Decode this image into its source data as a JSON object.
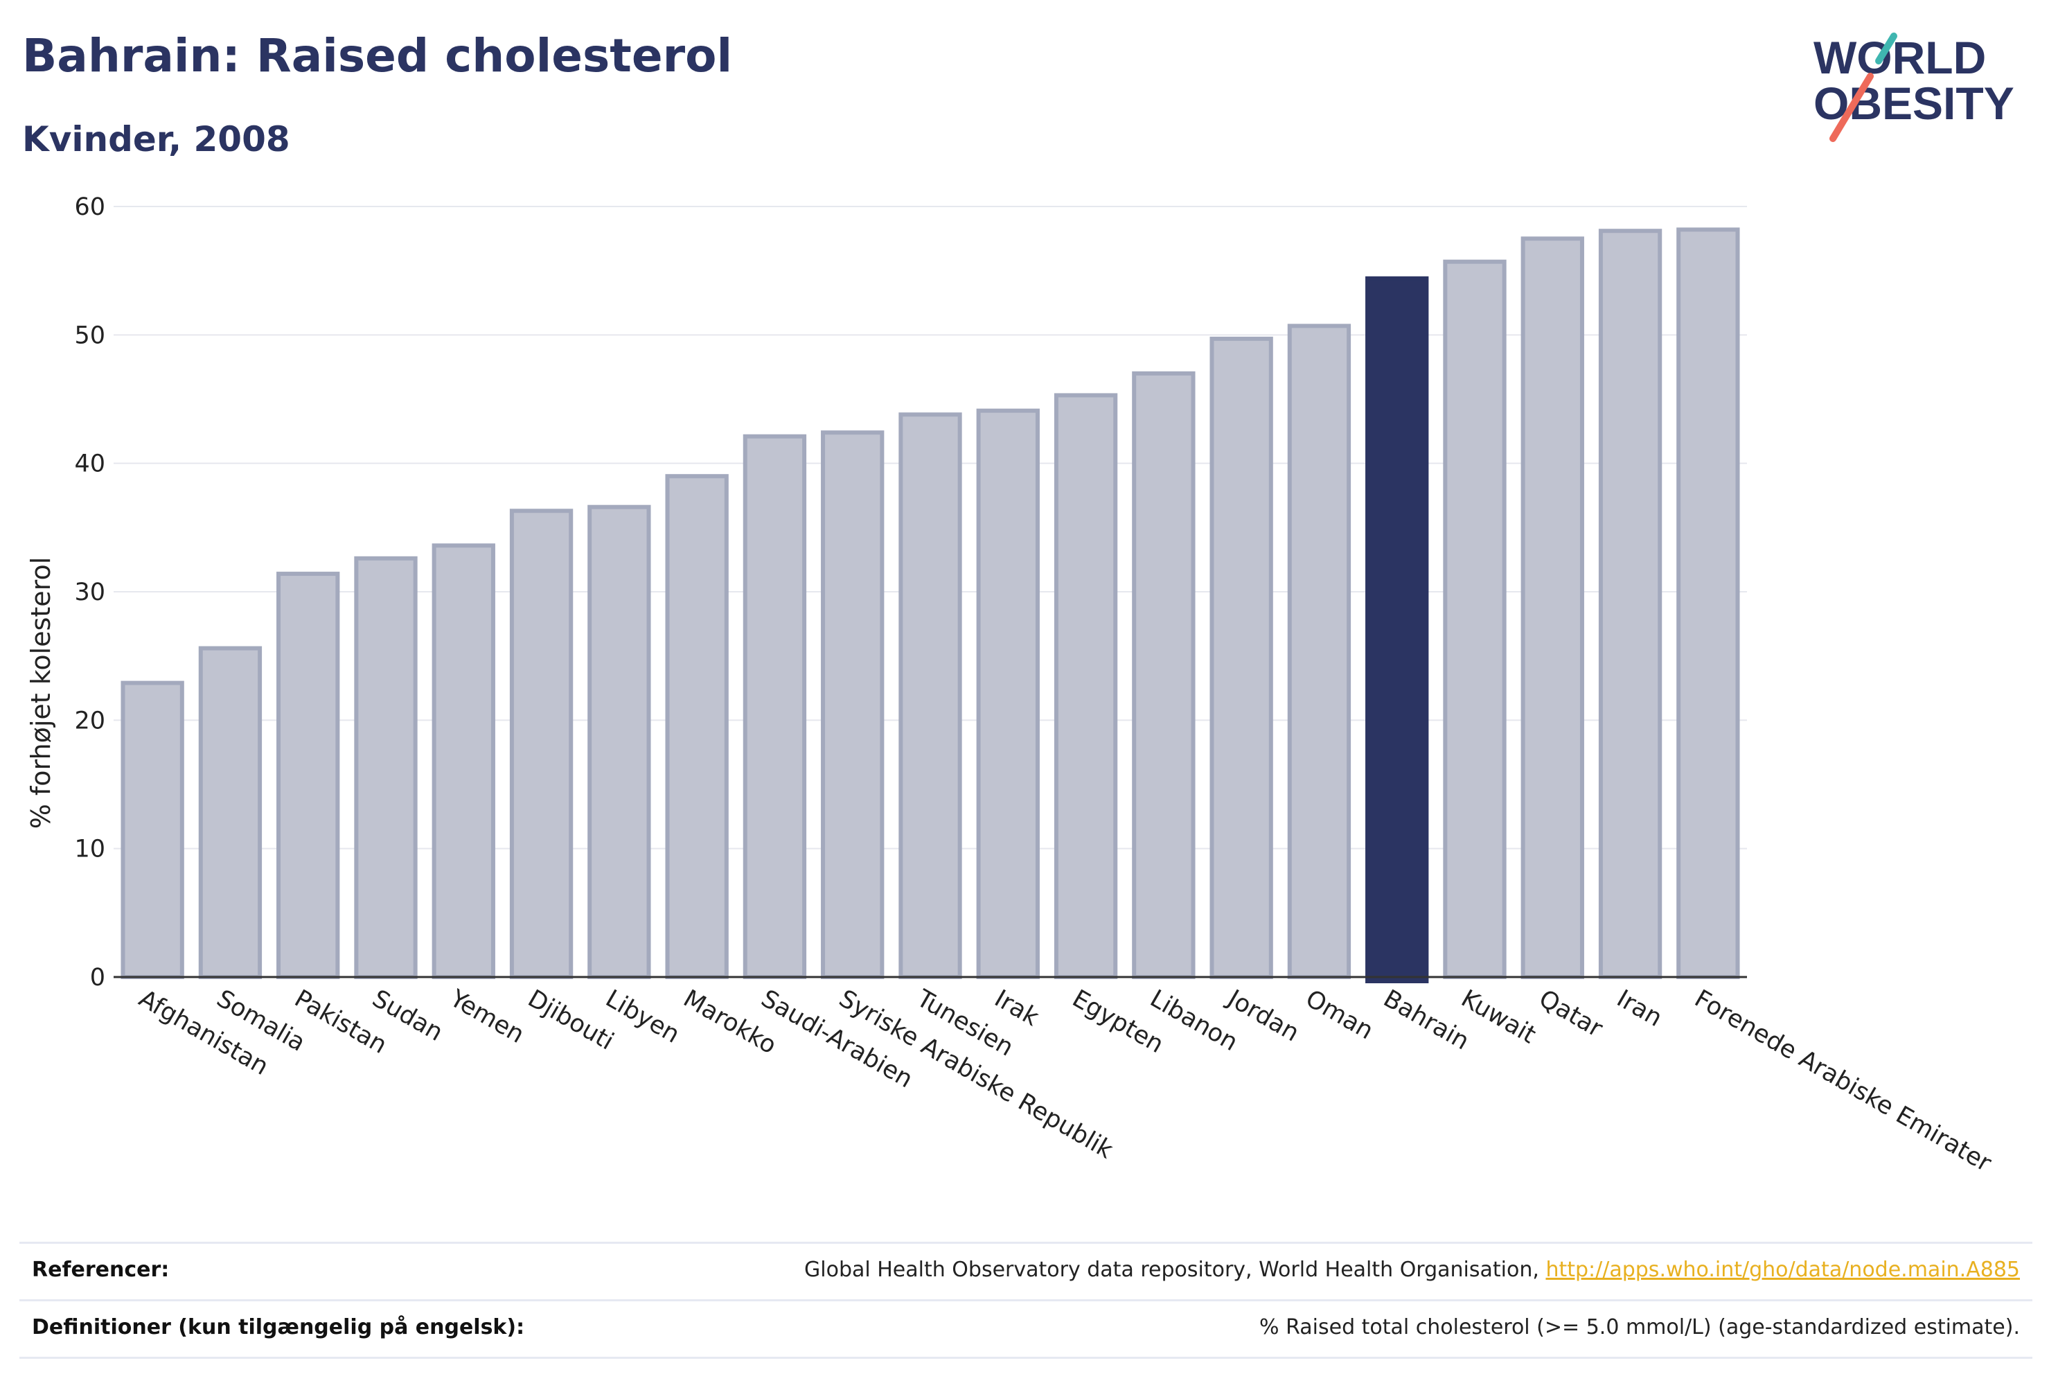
{
  "title": "Bahrain: Raised cholesterol",
  "subtitle": "Kvinder, 2008",
  "logo": {
    "line1": "WORLD",
    "line2": "OBESITY"
  },
  "colors": {
    "highlight": "#2b3462",
    "bar": "#c0c3d0",
    "bar_edge": "#a3a9bd",
    "text": "#2b3462",
    "link": "#e8b020",
    "grid": "#e6e8ee"
  },
  "chart_data": {
    "type": "bar",
    "categories": [
      "Afghanistan",
      "Somalia",
      "Pakistan",
      "Sudan",
      "Yemen",
      "Djibouti",
      "Libyen",
      "Marokko",
      "Saudi-Arabien",
      "Syriske Arabiske Republik",
      "Tunesien",
      "Irak",
      "Egypten",
      "Libanon",
      "Jordan",
      "Oman",
      "Bahrain",
      "Kuwait",
      "Qatar",
      "Iran",
      "Forenede Arabiske Emirater"
    ],
    "values": [
      22.9,
      25.6,
      31.4,
      32.6,
      33.6,
      36.3,
      36.6,
      39.0,
      42.1,
      42.4,
      43.8,
      44.1,
      45.3,
      47.0,
      49.7,
      50.7,
      54.4,
      55.7,
      57.5,
      58.1,
      58.2
    ],
    "highlight": "Bahrain",
    "ylabel": "% forhøjet kolesterol",
    "xlabel": "",
    "ylim": [
      0,
      60
    ],
    "yticks": [
      "0",
      "10",
      "20",
      "30",
      "40",
      "50",
      "60"
    ],
    "grid": true
  },
  "footer": {
    "ref_label": "Referencer:",
    "ref_text": "Global Health Observatory data repository, World Health Organisation, ",
    "ref_link": "http://apps.who.int/gho/data/node.main.A885",
    "def_label": "Definitioner (kun tilgængelig på engelsk):",
    "def_text": "% Raised total cholesterol (>= 5.0 mmol/L) (age-standardized estimate)."
  }
}
